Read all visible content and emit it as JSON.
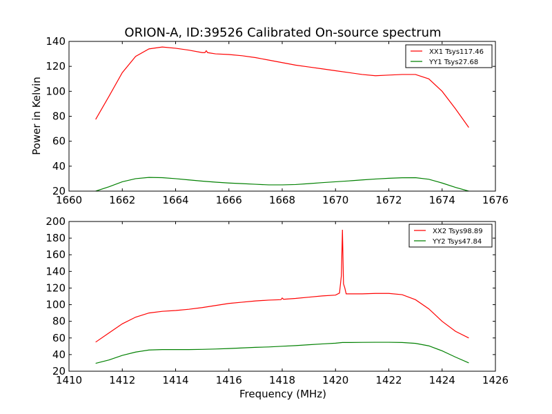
{
  "chart_data": [
    {
      "type": "line",
      "title": "ORION-A, ID:39526 Calibrated On-source spectrum",
      "xlabel": "",
      "ylabel": "Power in Kelvin",
      "xlim": [
        1660,
        1676
      ],
      "ylim": [
        20,
        140
      ],
      "xticks": [
        1660,
        1662,
        1664,
        1666,
        1668,
        1670,
        1672,
        1674,
        1676
      ],
      "yticks": [
        20,
        40,
        60,
        80,
        100,
        120,
        140
      ],
      "legend_position": "top-right",
      "series": [
        {
          "name": "XX1 Tsys117.46",
          "color": "#ff0000",
          "x": [
            1661.0,
            1661.5,
            1662.0,
            1662.5,
            1663.0,
            1663.5,
            1664.0,
            1664.5,
            1665.0,
            1665.1,
            1665.15,
            1665.2,
            1665.5,
            1666.0,
            1666.5,
            1667.0,
            1667.5,
            1668.0,
            1668.5,
            1669.0,
            1669.5,
            1670.0,
            1670.5,
            1671.0,
            1671.5,
            1672.0,
            1672.5,
            1673.0,
            1673.5,
            1674.0,
            1674.5,
            1675.0
          ],
          "y": [
            77.5,
            96,
            115,
            128,
            134,
            135.5,
            134.5,
            133,
            131,
            131,
            132.5,
            131,
            130,
            129.5,
            128.5,
            127,
            125,
            123,
            121,
            119.5,
            118,
            116.5,
            115,
            113.5,
            112.5,
            113,
            113.5,
            113.5,
            110,
            100,
            86,
            71
          ]
        },
        {
          "name": "YY1 Tsys27.68",
          "color": "#008000",
          "x": [
            1661.0,
            1661.5,
            1662.0,
            1662.5,
            1663.0,
            1663.5,
            1664.0,
            1664.5,
            1665.0,
            1665.5,
            1666.0,
            1666.5,
            1667.0,
            1667.5,
            1668.0,
            1668.5,
            1669.0,
            1669.5,
            1670.0,
            1670.5,
            1671.0,
            1671.5,
            1672.0,
            1672.5,
            1673.0,
            1673.5,
            1674.0,
            1674.5,
            1675.0
          ],
          "y": [
            20,
            23.5,
            27.5,
            30,
            31,
            30.8,
            30,
            29,
            28,
            27.2,
            26.5,
            26,
            25.5,
            25,
            25,
            25.3,
            26,
            26.8,
            27.5,
            28.2,
            29,
            29.7,
            30.3,
            30.7,
            30.8,
            29.5,
            26.5,
            23,
            20
          ]
        }
      ]
    },
    {
      "type": "line",
      "title": "",
      "xlabel": "Frequency (MHz)",
      "ylabel": "",
      "xlim": [
        1410,
        1426
      ],
      "ylim": [
        20,
        200
      ],
      "xticks": [
        1410,
        1412,
        1414,
        1416,
        1418,
        1420,
        1422,
        1424,
        1426
      ],
      "yticks": [
        20,
        40,
        60,
        80,
        100,
        120,
        140,
        160,
        180,
        200
      ],
      "legend_position": "top-right",
      "series": [
        {
          "name": "XX2 Tsys98.89",
          "color": "#ff0000",
          "x": [
            1411.0,
            1411.5,
            1412.0,
            1412.5,
            1413.0,
            1413.5,
            1414.0,
            1414.5,
            1415.0,
            1415.5,
            1416.0,
            1416.5,
            1417.0,
            1417.5,
            1417.95,
            1418.0,
            1418.05,
            1418.5,
            1419.0,
            1419.5,
            1420.0,
            1420.15,
            1420.22,
            1420.26,
            1420.3,
            1420.35,
            1420.4,
            1420.5,
            1421.0,
            1421.5,
            1422.0,
            1422.5,
            1423.0,
            1423.5,
            1424.0,
            1424.5,
            1425.0
          ],
          "y": [
            55,
            66,
            77,
            85,
            90,
            92,
            93,
            94.5,
            96.5,
            99,
            101.5,
            103,
            104.5,
            105.5,
            106,
            108,
            106.5,
            107.5,
            109,
            110.5,
            111.5,
            114,
            135,
            190,
            125,
            120,
            113,
            113,
            113,
            113.5,
            113.5,
            112,
            106,
            95,
            80,
            68,
            60
          ]
        },
        {
          "name": "YY2 Tsys47.84",
          "color": "#008000",
          "x": [
            1411.0,
            1411.5,
            1412.0,
            1412.5,
            1413.0,
            1413.5,
            1414.0,
            1414.5,
            1415.0,
            1415.5,
            1416.0,
            1416.5,
            1417.0,
            1417.5,
            1418.0,
            1418.5,
            1419.0,
            1419.5,
            1420.0,
            1420.26,
            1420.5,
            1421.0,
            1421.5,
            1422.0,
            1422.5,
            1423.0,
            1423.5,
            1424.0,
            1424.5,
            1425.0
          ],
          "y": [
            29.5,
            33.5,
            39,
            43,
            45.5,
            46,
            46,
            46,
            46.3,
            46.7,
            47.3,
            48,
            48.7,
            49.2,
            50,
            50.8,
            51.8,
            52.8,
            53.7,
            54.5,
            54.5,
            54.7,
            54.8,
            54.8,
            54.5,
            53.5,
            50.5,
            44.5,
            37,
            30
          ]
        }
      ]
    }
  ]
}
